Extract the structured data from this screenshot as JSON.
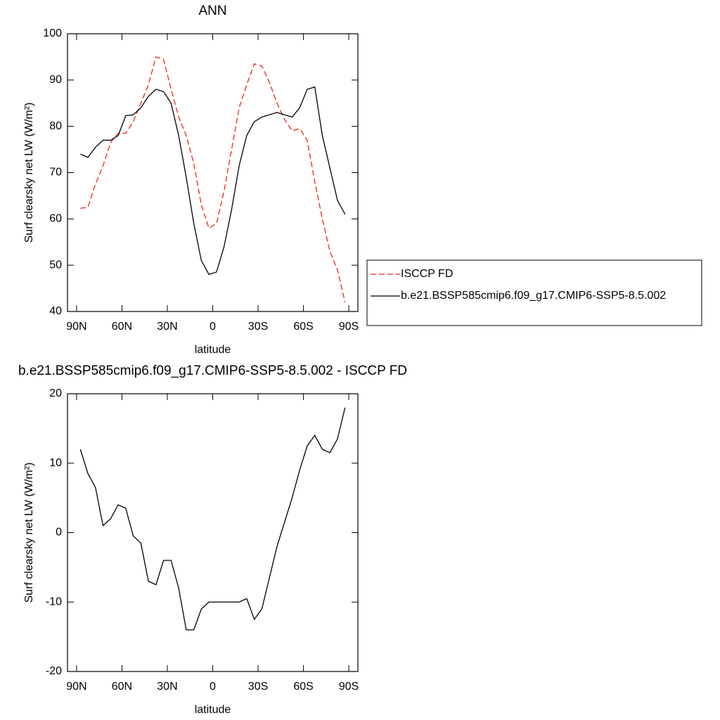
{
  "chart_data": [
    {
      "type": "line",
      "title": "ANN",
      "xlabel": "latitude",
      "ylabel": "Surf clearsky net LW (W/m²)",
      "x": [
        87.5,
        82.5,
        77.5,
        72.5,
        67.5,
        62.5,
        57.5,
        52.5,
        47.5,
        42.5,
        37.5,
        32.5,
        27.5,
        22.5,
        17.5,
        12.5,
        7.5,
        2.5,
        -2.5,
        -7.5,
        -12.5,
        -17.5,
        -22.5,
        -27.5,
        -32.5,
        -37.5,
        -42.5,
        -47.5,
        -52.5,
        -57.5,
        -62.5,
        -67.5,
        -72.5,
        -77.5,
        -82.5,
        -87.5
      ],
      "series": [
        {
          "name": "ISCCP FD",
          "color": "#e8261f",
          "dash": true,
          "values": [
            62.3,
            62.5,
            67.5,
            71.5,
            76.5,
            78.5,
            78.5,
            81,
            85,
            89,
            95,
            94.5,
            88,
            82,
            78,
            72,
            63,
            58,
            59,
            66,
            75,
            84,
            89,
            93.5,
            93,
            89.5,
            85,
            81.5,
            79,
            79.5,
            77,
            68,
            60,
            53,
            49,
            42
          ]
        },
        {
          "name": "b.e21.BSSP585cmip6.f09_g17.CMIP6-SSP5-8.5.002",
          "color": "#000000",
          "dash": false,
          "values": [
            74,
            73.3,
            75.5,
            77,
            77,
            78,
            82.3,
            82.5,
            84,
            86.5,
            88,
            87.5,
            85,
            78,
            69,
            59,
            51,
            48,
            48.5,
            54,
            62,
            71.5,
            78,
            81,
            82,
            82.5,
            83,
            82.5,
            82,
            84,
            88,
            88.5,
            78,
            71,
            64,
            61
          ]
        }
      ],
      "xlim": [
        96,
        -96
      ],
      "xticks": [
        {
          "value": 90,
          "label": "90N"
        },
        {
          "value": 60,
          "label": "60N"
        },
        {
          "value": 30,
          "label": "30N"
        },
        0,
        {
          "value": -30,
          "label": "30S"
        },
        {
          "value": -60,
          "label": "60S"
        },
        {
          "value": -90,
          "label": "90S"
        }
      ],
      "ylim": [
        40,
        100
      ],
      "yticks": [
        40,
        50,
        60,
        70,
        80,
        90,
        100
      ],
      "legend": "right"
    },
    {
      "type": "line",
      "title": "b.e21.BSSP585cmip6.f09_g17.CMIP6-SSP5-8.5.002 - ISCCP FD",
      "xlabel": "latitude",
      "ylabel": "Surf clearsky net LW (W/m²)",
      "x": [
        87.5,
        82.5,
        77.5,
        72.5,
        67.5,
        62.5,
        57.5,
        52.5,
        47.5,
        42.5,
        37.5,
        32.5,
        27.5,
        22.5,
        17.5,
        12.5,
        7.5,
        2.5,
        -2.5,
        -7.5,
        -12.5,
        -17.5,
        -22.5,
        -27.5,
        -32.5,
        -37.5,
        -42.5,
        -47.5,
        -52.5,
        -57.5,
        -62.5,
        -67.5,
        -72.5,
        -77.5,
        -82.5,
        -87.5
      ],
      "values": [
        12,
        8.5,
        6.5,
        1,
        2,
        4,
        3.5,
        -0.5,
        -1.5,
        -7,
        -7.5,
        -4,
        -4,
        -8,
        -14,
        -14,
        -11,
        -10,
        -10,
        -10,
        -10,
        -10,
        -9.5,
        -12.5,
        -11,
        -6.5,
        -2,
        1.5,
        5,
        9,
        12.5,
        14,
        12,
        11.5,
        13.5,
        18
      ],
      "color": "#000000",
      "xlim": [
        96,
        -96
      ],
      "xticks": [
        {
          "value": 90,
          "label": "90N"
        },
        {
          "value": 60,
          "label": "60N"
        },
        {
          "value": 30,
          "label": "30N"
        },
        0,
        {
          "value": -30,
          "label": "30S"
        },
        {
          "value": -60,
          "label": "60S"
        },
        {
          "value": -90,
          "label": "90S"
        }
      ],
      "ylim": [
        -20,
        20
      ],
      "yticks": [
        -20,
        -10,
        0,
        10,
        20
      ]
    }
  ]
}
